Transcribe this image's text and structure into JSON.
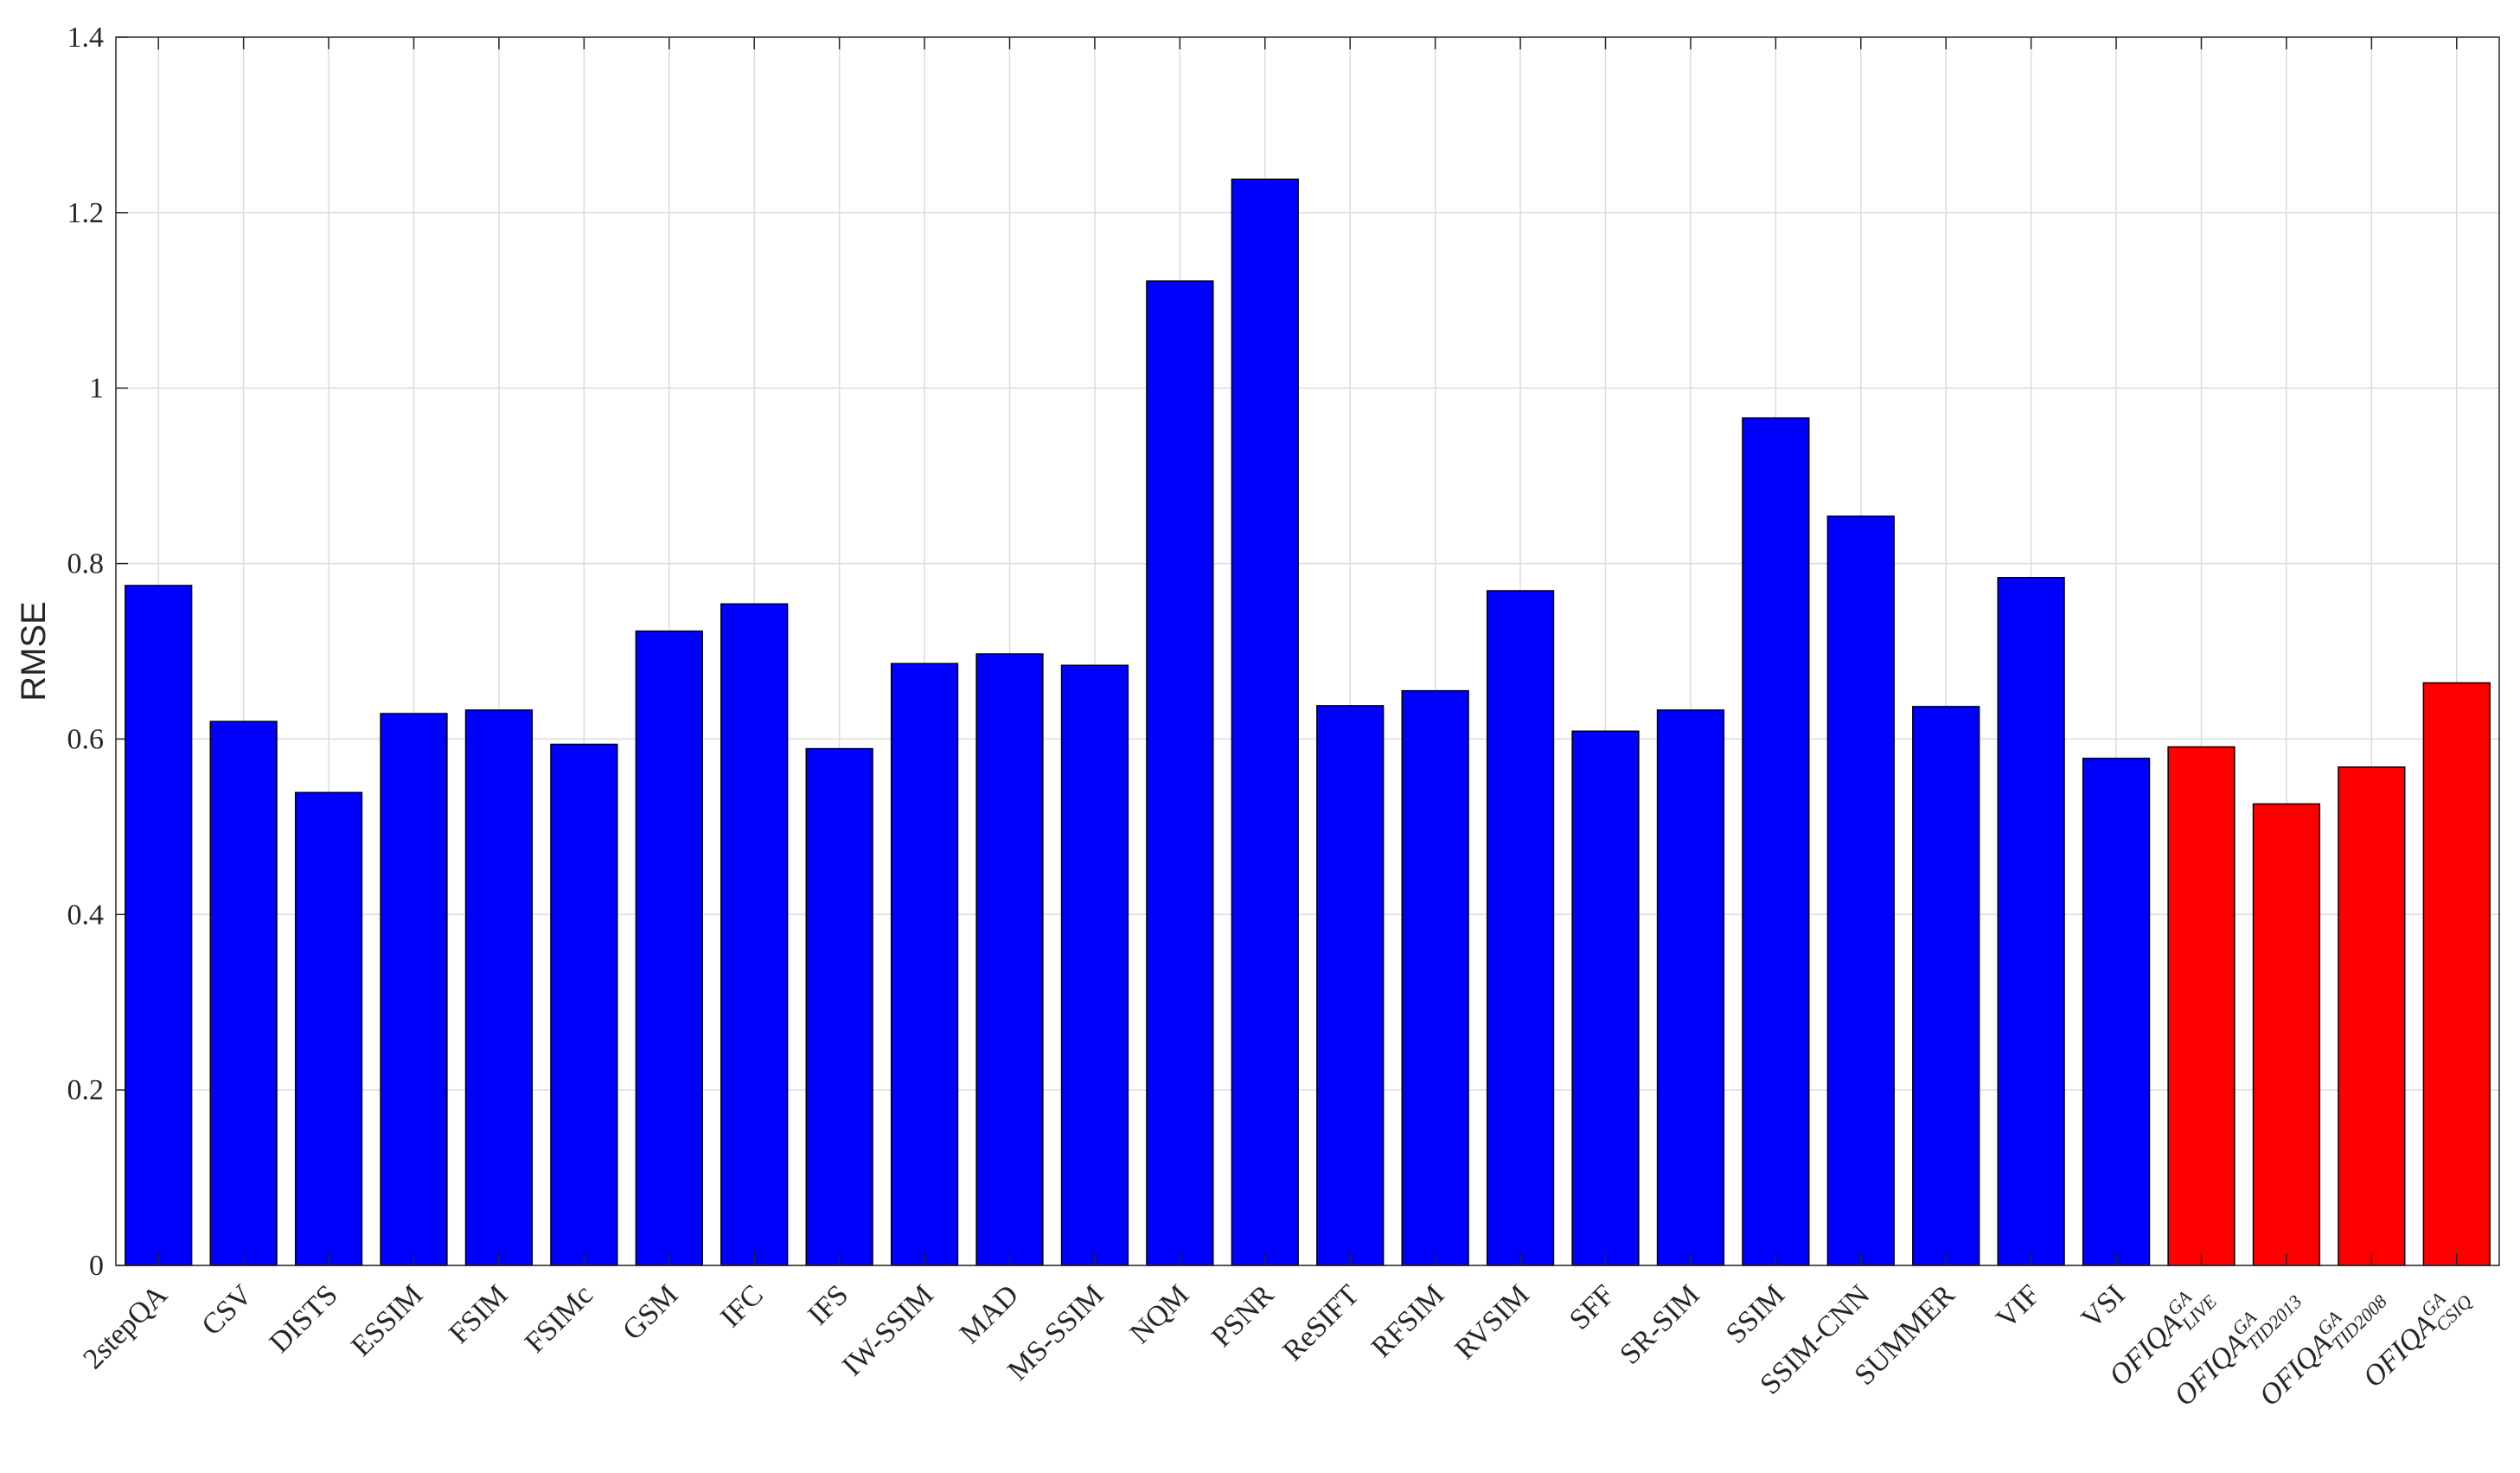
{
  "chart_data": {
    "type": "bar",
    "y_label": "RMSE",
    "categories": [
      "2stepQA",
      "CSV",
      "DISTS",
      "ESSIM",
      "FSIM",
      "FSIMc",
      "GSM",
      "IFC",
      "IFS",
      "IW-SSIM",
      "MAD",
      "MS-SSIM",
      "NQM",
      "PSNR",
      "ReSIFT",
      "RFSIM",
      "RVSIM",
      "SFF",
      "SR-SIM",
      "SSIM",
      "SSIM-CNN",
      "SUMMER",
      "VIF",
      "VSI",
      {
        "base": "OFIQA",
        "sup": "GA",
        "sub": "LIVE"
      },
      {
        "base": "OFIQA",
        "sup": "GA",
        "sub": "TID2013"
      },
      {
        "base": "OFIQA",
        "sup": "GA",
        "sub": "TID2008"
      },
      {
        "base": "OFIQA",
        "sup": "GA",
        "sub": "CSIQ"
      }
    ],
    "values": [
      0.775,
      0.62,
      0.539,
      0.629,
      0.633,
      0.594,
      0.723,
      0.754,
      0.589,
      0.686,
      0.697,
      0.684,
      1.122,
      1.238,
      0.638,
      0.655,
      0.769,
      0.609,
      0.633,
      0.966,
      0.854,
      0.637,
      0.784,
      0.578,
      0.591,
      0.526,
      0.568,
      0.664
    ],
    "colors": [
      "#0000ff",
      "#0000ff",
      "#0000ff",
      "#0000ff",
      "#0000ff",
      "#0000ff",
      "#0000ff",
      "#0000ff",
      "#0000ff",
      "#0000ff",
      "#0000ff",
      "#0000ff",
      "#0000ff",
      "#0000ff",
      "#0000ff",
      "#0000ff",
      "#0000ff",
      "#0000ff",
      "#0000ff",
      "#0000ff",
      "#0000ff",
      "#0000ff",
      "#0000ff",
      "#0000ff",
      "#ff0000",
      "#ff0000",
      "#ff0000",
      "#ff0000"
    ],
    "ylim": [
      0,
      1.4
    ],
    "yticks": [
      0,
      0.2,
      0.4,
      0.6,
      0.8,
      1,
      1.2,
      1.4
    ],
    "grid": true
  }
}
